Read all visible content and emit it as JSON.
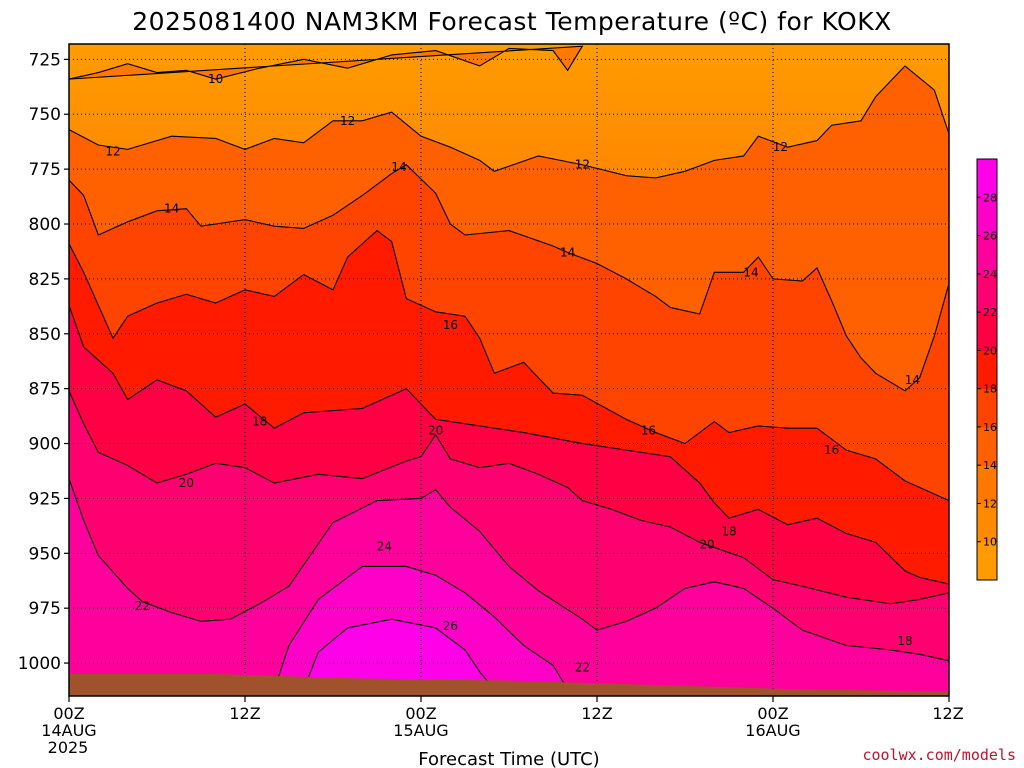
{
  "chart_data": {
    "type": "heatmap",
    "title": "2025081400 NAM3KM Forecast Temperature (ºC) for KOKX",
    "xlabel": "Forecast Time (UTC)",
    "ylabel": "",
    "y_scale": "pressure (hPa), increasing downward",
    "ylim": [
      1015,
      718
    ],
    "y_ticks": [
      "725",
      "750",
      "775",
      "800",
      "825",
      "850",
      "875",
      "900",
      "925",
      "950",
      "975",
      "1000"
    ],
    "x_ticks": [
      {
        "l1": "00Z",
        "l2": "14AUG",
        "l3": "2025"
      },
      {
        "l1": "12Z",
        "l2": "",
        "l3": ""
      },
      {
        "l1": "00Z",
        "l2": "15AUG",
        "l3": ""
      },
      {
        "l1": "12Z",
        "l2": "",
        "l3": ""
      },
      {
        "l1": "00Z",
        "l2": "16AUG",
        "l3": ""
      },
      {
        "l1": "12Z",
        "l2": "",
        "l3": ""
      }
    ],
    "x_hours": [
      0,
      12,
      24,
      36,
      48,
      60
    ],
    "colorbar": {
      "min": 8,
      "max": 30,
      "step": 2,
      "labels": [
        "10",
        "12",
        "14",
        "16",
        "18",
        "20",
        "22",
        "24",
        "26",
        "28"
      ],
      "colors": [
        "#ff9a00",
        "#ff8a00",
        "#ff7800",
        "#ff6000",
        "#ff4400",
        "#ff1a00",
        "#ff0044",
        "#ff0070",
        "#ff009c",
        "#ff00c8",
        "#ff00e8"
      ]
    },
    "contour_labels": [
      {
        "text": "10",
        "hour": 10.0,
        "p": 734
      },
      {
        "text": "12",
        "hour": 3.0,
        "p": 767
      },
      {
        "text": "12",
        "hour": 19.0,
        "p": 753
      },
      {
        "text": "12",
        "hour": 35.0,
        "p": 773
      },
      {
        "text": "12",
        "hour": 48.5,
        "p": 765
      },
      {
        "text": "14",
        "hour": 7.0,
        "p": 793
      },
      {
        "text": "14",
        "hour": 22.5,
        "p": 774
      },
      {
        "text": "14",
        "hour": 34.0,
        "p": 813
      },
      {
        "text": "14",
        "hour": 46.5,
        "p": 822
      },
      {
        "text": "14",
        "hour": 57.5,
        "p": 871
      },
      {
        "text": "16",
        "hour": 26.0,
        "p": 846
      },
      {
        "text": "16",
        "hour": 39.5,
        "p": 894
      },
      {
        "text": "16",
        "hour": 52.0,
        "p": 903
      },
      {
        "text": "18",
        "hour": 13.0,
        "p": 890
      },
      {
        "text": "18",
        "hour": 45.0,
        "p": 940
      },
      {
        "text": "18",
        "hour": 57.0,
        "p": 990
      },
      {
        "text": "20",
        "hour": 8.0,
        "p": 918
      },
      {
        "text": "20",
        "hour": 25.0,
        "p": 894
      },
      {
        "text": "20",
        "hour": 43.5,
        "p": 946
      },
      {
        "text": "22",
        "hour": 5.0,
        "p": 974
      },
      {
        "text": "22",
        "hour": 35.0,
        "p": 1002
      },
      {
        "text": "24",
        "hour": 21.5,
        "p": 947
      },
      {
        "text": "26",
        "hour": 26.0,
        "p": 983
      }
    ],
    "contours": [
      {
        "value": 10,
        "pts": [
          [
            0,
            734
          ],
          [
            2,
            731
          ],
          [
            4,
            727
          ],
          [
            6,
            731
          ],
          [
            8,
            730
          ],
          [
            10,
            734
          ],
          [
            13,
            729
          ],
          [
            16,
            725
          ],
          [
            19,
            729
          ],
          [
            22,
            723
          ],
          [
            25,
            721
          ],
          [
            28,
            728
          ],
          [
            30,
            720
          ],
          [
            33,
            721
          ],
          [
            34,
            730
          ],
          [
            35,
            719
          ]
        ]
      },
      {
        "value": 12,
        "pts": [
          [
            0,
            757
          ],
          [
            2,
            764
          ],
          [
            4,
            766
          ],
          [
            7,
            760
          ],
          [
            10,
            761
          ],
          [
            12,
            766
          ],
          [
            14,
            761
          ],
          [
            16,
            763
          ],
          [
            18,
            753
          ],
          [
            20,
            753
          ],
          [
            22,
            749
          ],
          [
            24,
            760
          ],
          [
            26,
            765
          ],
          [
            28,
            771
          ],
          [
            29,
            776
          ],
          [
            32,
            769
          ],
          [
            35,
            773
          ],
          [
            38,
            778
          ],
          [
            40,
            779
          ],
          [
            42,
            776
          ],
          [
            44,
            771
          ],
          [
            46,
            769
          ],
          [
            47,
            760
          ],
          [
            49,
            765
          ],
          [
            51,
            762
          ],
          [
            52,
            755
          ],
          [
            54,
            753
          ],
          [
            55,
            742
          ],
          [
            57,
            728
          ],
          [
            59,
            739
          ],
          [
            60,
            759
          ],
          [
            60,
            764
          ]
        ]
      },
      {
        "value": 14,
        "pts": [
          [
            0,
            780
          ],
          [
            1,
            787
          ],
          [
            2,
            805
          ],
          [
            4,
            799
          ],
          [
            6,
            794
          ],
          [
            8,
            793
          ],
          [
            9,
            801
          ],
          [
            12,
            798
          ],
          [
            14,
            801
          ],
          [
            16,
            802
          ],
          [
            18,
            796
          ],
          [
            20,
            787
          ],
          [
            22,
            777
          ],
          [
            23,
            773
          ],
          [
            25,
            786
          ],
          [
            26,
            800
          ],
          [
            27,
            805
          ],
          [
            30,
            803
          ],
          [
            33,
            810
          ],
          [
            34,
            813
          ],
          [
            36,
            818
          ],
          [
            38,
            825
          ],
          [
            40,
            833
          ],
          [
            41,
            838
          ],
          [
            43,
            841
          ],
          [
            44,
            822
          ],
          [
            46,
            822
          ],
          [
            47,
            815
          ],
          [
            48,
            825
          ],
          [
            50,
            826
          ],
          [
            51,
            820
          ],
          [
            52,
            835
          ],
          [
            53,
            851
          ],
          [
            54,
            861
          ],
          [
            55,
            868
          ],
          [
            57,
            876
          ],
          [
            58,
            870
          ],
          [
            59,
            851
          ],
          [
            60,
            827
          ]
        ]
      },
      {
        "value": 16,
        "pts": [
          [
            0,
            809
          ],
          [
            1,
            822
          ],
          [
            2,
            837
          ],
          [
            3,
            852
          ],
          [
            4,
            842
          ],
          [
            6,
            836
          ],
          [
            8,
            832
          ],
          [
            10,
            836
          ],
          [
            12,
            830
          ],
          [
            14,
            833
          ],
          [
            16,
            823
          ],
          [
            18,
            830
          ],
          [
            19,
            815
          ],
          [
            21,
            803
          ],
          [
            22,
            808
          ],
          [
            23,
            834
          ],
          [
            25,
            840
          ],
          [
            27,
            842
          ],
          [
            28,
            852
          ],
          [
            29,
            868
          ],
          [
            31,
            863
          ],
          [
            33,
            877
          ],
          [
            35,
            878
          ],
          [
            38,
            889
          ],
          [
            40,
            895
          ],
          [
            42,
            900
          ],
          [
            44,
            890
          ],
          [
            45,
            895
          ],
          [
            47,
            892
          ],
          [
            49,
            893
          ],
          [
            51,
            893
          ],
          [
            53,
            903
          ],
          [
            55,
            907
          ],
          [
            57,
            917
          ],
          [
            60,
            926
          ]
        ]
      },
      {
        "value": 18,
        "pts": [
          [
            0,
            837
          ],
          [
            1,
            856
          ],
          [
            3,
            868
          ],
          [
            4,
            880
          ],
          [
            6,
            871
          ],
          [
            8,
            876
          ],
          [
            10,
            888
          ],
          [
            12,
            882
          ],
          [
            14,
            893
          ],
          [
            16,
            886
          ],
          [
            18,
            885
          ],
          [
            20,
            884
          ],
          [
            22,
            878
          ],
          [
            23,
            875
          ],
          [
            25,
            889
          ],
          [
            28,
            892
          ],
          [
            31,
            895
          ],
          [
            35,
            900
          ],
          [
            38,
            903
          ],
          [
            41,
            906
          ],
          [
            43,
            918
          ],
          [
            44,
            927
          ],
          [
            45,
            934
          ],
          [
            47,
            930
          ],
          [
            49,
            937
          ],
          [
            51,
            934
          ],
          [
            53,
            941
          ],
          [
            55,
            945
          ],
          [
            57,
            958
          ],
          [
            58,
            961
          ],
          [
            60,
            964
          ]
        ]
      },
      {
        "value": 20,
        "pts": [
          [
            0,
            876
          ],
          [
            1,
            891
          ],
          [
            2,
            904
          ],
          [
            4,
            910
          ],
          [
            6,
            918
          ],
          [
            8,
            914
          ],
          [
            10,
            909
          ],
          [
            12,
            911
          ],
          [
            14,
            918
          ],
          [
            17,
            914
          ],
          [
            20,
            916
          ],
          [
            23,
            908
          ],
          [
            24,
            906
          ],
          [
            25,
            896
          ],
          [
            26,
            907
          ],
          [
            28,
            911
          ],
          [
            30,
            909
          ],
          [
            32,
            914
          ],
          [
            34,
            920
          ],
          [
            35,
            926
          ],
          [
            37,
            930
          ],
          [
            39,
            935
          ],
          [
            41,
            938
          ],
          [
            43,
            945
          ],
          [
            46,
            952
          ],
          [
            48,
            962
          ],
          [
            50,
            965
          ],
          [
            53,
            970
          ],
          [
            56,
            973
          ],
          [
            58,
            971
          ],
          [
            60,
            968
          ]
        ]
      },
      {
        "value": 22,
        "pts": [
          [
            0,
            916
          ],
          [
            1,
            935
          ],
          [
            2,
            951
          ],
          [
            4,
            966
          ],
          [
            5,
            972
          ],
          [
            7,
            977
          ],
          [
            9,
            981
          ],
          [
            11,
            980
          ],
          [
            13,
            973
          ],
          [
            15,
            965
          ],
          [
            18,
            936
          ],
          [
            21,
            926
          ],
          [
            24,
            925
          ],
          [
            25,
            921
          ],
          [
            26,
            929
          ],
          [
            28,
            940
          ],
          [
            30,
            956
          ],
          [
            32,
            967
          ],
          [
            35,
            980
          ],
          [
            36,
            985
          ],
          [
            38,
            981
          ],
          [
            40,
            975
          ],
          [
            42,
            966
          ],
          [
            44,
            963
          ],
          [
            46,
            966
          ],
          [
            48,
            975
          ],
          [
            50,
            985
          ],
          [
            53,
            992
          ],
          [
            56,
            994
          ],
          [
            58,
            996
          ],
          [
            60,
            999
          ]
        ]
      },
      {
        "value": 24,
        "pts": [
          [
            14,
            1012
          ],
          [
            15,
            992
          ],
          [
            17,
            971
          ],
          [
            20,
            956
          ],
          [
            23,
            956
          ],
          [
            25,
            960
          ],
          [
            27,
            968
          ],
          [
            29,
            979
          ],
          [
            31,
            992
          ],
          [
            33,
            1001
          ],
          [
            34,
            1012
          ]
        ]
      },
      {
        "value": 26,
        "pts": [
          [
            16,
            1012
          ],
          [
            17,
            995
          ],
          [
            19,
            984
          ],
          [
            22,
            980
          ],
          [
            25,
            984
          ],
          [
            27,
            994
          ],
          [
            28,
            1004
          ],
          [
            29,
            1012
          ]
        ]
      }
    ],
    "ground": [
      [
        0,
        1005
      ],
      [
        10,
        1005
      ],
      [
        20,
        1007
      ],
      [
        30,
        1008
      ],
      [
        40,
        1010
      ],
      [
        50,
        1012
      ],
      [
        60,
        1013
      ]
    ]
  },
  "credit": "coolwx.com/models"
}
